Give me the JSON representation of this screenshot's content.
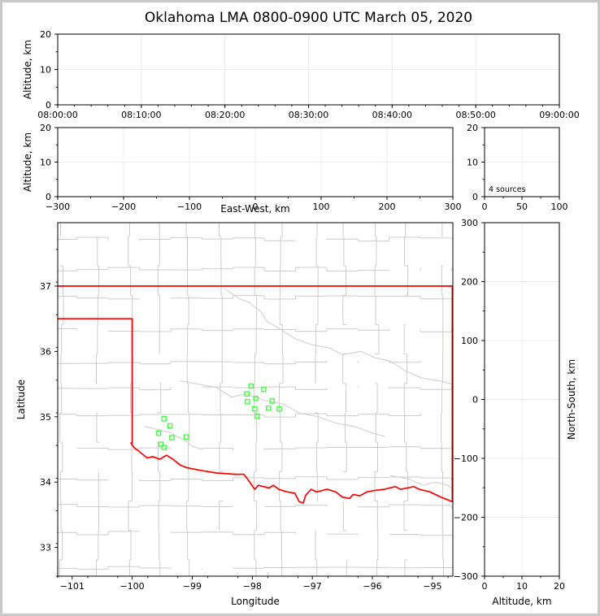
{
  "title": "Oklahoma LMA 0800-0900 UTC March 05, 2020",
  "colors": {
    "background": "#ffffff",
    "page_border": "#c8c8c8",
    "spine": "#000000",
    "gridline": "#ececec",
    "county_line": "#cccccc",
    "state_border": "#ff0000",
    "red_river": "#ff0000",
    "station_marker": "#44ff44",
    "text": "#000000"
  },
  "annotations": {
    "source_count": "4 sources"
  },
  "chart_data": [
    {
      "id": "time_height",
      "type": "scatter",
      "xlabel": "",
      "ylabel": "Altitude, km",
      "xlim": [
        0,
        3600
      ],
      "ylim": [
        0,
        20
      ],
      "xticks": {
        "values": [
          0,
          600,
          1200,
          1800,
          2400,
          3000,
          3600
        ],
        "labels": [
          "08:00:00",
          "08:10:00",
          "08:20:00",
          "08:30:00",
          "08:40:00",
          "08:50:00",
          "09:00:00"
        ],
        "minor_step": 120
      },
      "yticks": {
        "values": [
          0,
          10,
          20
        ],
        "labels": [
          "0",
          "10",
          "20"
        ],
        "minor_step": 5
      },
      "grid": true,
      "points": []
    },
    {
      "id": "ew_height",
      "type": "scatter",
      "xlabel": "East-West, km",
      "ylabel": "Altitude, km",
      "xlim": [
        -300,
        300
      ],
      "ylim": [
        0,
        20
      ],
      "xticks": {
        "values": [
          -300,
          -200,
          -100,
          0,
          100,
          200,
          300
        ],
        "labels": [
          "−300",
          "−200",
          "−100",
          "0",
          "100",
          "200",
          "300"
        ],
        "minor_step": 50
      },
      "yticks": {
        "values": [
          0,
          10,
          20
        ],
        "labels": [
          "0",
          "10",
          "20"
        ],
        "minor_step": 5
      },
      "grid": true,
      "points": []
    },
    {
      "id": "alt_histogram",
      "type": "line",
      "xlabel": "",
      "ylabel": "",
      "annotation": "4 sources",
      "xlim": [
        0,
        100
      ],
      "ylim": [
        0,
        20
      ],
      "xticks": {
        "values": [
          0,
          50,
          100
        ],
        "labels": [
          "0",
          "50",
          "100"
        ],
        "minor_step": 25
      },
      "yticks": {
        "values": [
          0,
          10,
          20
        ],
        "labels": [
          "0",
          "10",
          "20"
        ],
        "minor_step": 5
      },
      "grid": true,
      "points": []
    },
    {
      "id": "map",
      "type": "map+scatter",
      "xlabel": "Longitude",
      "ylabel": "Latitude",
      "xlim": [
        -101.24,
        -94.66
      ],
      "ylim": [
        32.56,
        37.97
      ],
      "xticks": {
        "values": [
          -101,
          -100,
          -99,
          -98,
          -97,
          -96,
          -95
        ],
        "labels": [
          "−101",
          "−100",
          "−99",
          "−98",
          "−97",
          "−96",
          "−95"
        ],
        "minor_step": 0.5
      },
      "yticks": {
        "values": [
          33,
          34,
          35,
          36,
          37
        ],
        "labels": [
          "33",
          "34",
          "35",
          "36",
          "37"
        ],
        "minor_step": 0.5
      },
      "grid": false,
      "county_grid": {
        "lon_step": 0.52,
        "lat_step": 0.45
      },
      "state_border_segments": [
        {
          "name": "kansas-border",
          "points": [
            [
              -101.24,
              37.0
            ],
            [
              -94.66,
              37.0
            ]
          ]
        },
        {
          "name": "panhandle-border",
          "points": [
            [
              -101.24,
              36.5
            ],
            [
              -100.0,
              36.5
            ]
          ]
        },
        {
          "name": "meridian-100-border",
          "points": [
            [
              -100.0,
              36.5
            ],
            [
              -100.0,
              34.6
            ]
          ]
        },
        {
          "name": "east-border",
          "points": [
            [
              -94.67,
              37.0
            ],
            [
              -94.67,
              33.72
            ]
          ]
        }
      ],
      "red_river": [
        [
          -100.02,
          34.6
        ],
        [
          -99.97,
          34.53
        ],
        [
          -99.86,
          34.45
        ],
        [
          -99.75,
          34.37
        ],
        [
          -99.66,
          34.39
        ],
        [
          -99.54,
          34.35
        ],
        [
          -99.43,
          34.41
        ],
        [
          -99.32,
          34.35
        ],
        [
          -99.2,
          34.26
        ],
        [
          -99.09,
          34.22
        ],
        [
          -98.87,
          34.18
        ],
        [
          -98.6,
          34.14
        ],
        [
          -98.28,
          34.12
        ],
        [
          -98.14,
          34.12
        ],
        [
          -98.05,
          34.01
        ],
        [
          -97.96,
          33.89
        ],
        [
          -97.9,
          33.95
        ],
        [
          -97.72,
          33.91
        ],
        [
          -97.65,
          33.95
        ],
        [
          -97.56,
          33.89
        ],
        [
          -97.42,
          33.85
        ],
        [
          -97.29,
          33.83
        ],
        [
          -97.22,
          33.7
        ],
        [
          -97.15,
          33.68
        ],
        [
          -97.11,
          33.8
        ],
        [
          -97.02,
          33.89
        ],
        [
          -96.93,
          33.85
        ],
        [
          -96.75,
          33.89
        ],
        [
          -96.61,
          33.85
        ],
        [
          -96.5,
          33.77
        ],
        [
          -96.38,
          33.75
        ],
        [
          -96.32,
          33.81
        ],
        [
          -96.21,
          33.79
        ],
        [
          -96.09,
          33.85
        ],
        [
          -95.98,
          33.87
        ],
        [
          -95.8,
          33.89
        ],
        [
          -95.62,
          33.93
        ],
        [
          -95.53,
          33.89
        ],
        [
          -95.31,
          33.93
        ],
        [
          -95.22,
          33.89
        ],
        [
          -95.04,
          33.85
        ],
        [
          -94.86,
          33.77
        ],
        [
          -94.67,
          33.7
        ]
      ],
      "gray_rivers": [
        [
          [
            -98.45,
            36.95
          ],
          [
            -98.2,
            36.8
          ],
          [
            -98.05,
            36.75
          ],
          [
            -97.85,
            36.6
          ],
          [
            -97.75,
            36.45
          ],
          [
            -97.6,
            36.38
          ],
          [
            -97.3,
            36.2
          ],
          [
            -97.0,
            36.1
          ],
          [
            -96.7,
            36.05
          ],
          [
            -96.5,
            35.95
          ],
          [
            -96.2,
            36.0
          ],
          [
            -95.95,
            35.9
          ],
          [
            -95.7,
            35.85
          ],
          [
            -95.45,
            35.7
          ],
          [
            -95.2,
            35.6
          ],
          [
            -94.9,
            35.55
          ],
          [
            -94.66,
            35.5
          ]
        ],
        [
          [
            -99.2,
            35.55
          ],
          [
            -98.9,
            35.5
          ],
          [
            -98.6,
            35.45
          ],
          [
            -98.35,
            35.3
          ],
          [
            -98.1,
            35.35
          ],
          [
            -97.8,
            35.25
          ],
          [
            -97.5,
            35.2
          ],
          [
            -97.2,
            35.05
          ],
          [
            -96.9,
            35.0
          ],
          [
            -96.6,
            34.9
          ],
          [
            -96.3,
            34.85
          ],
          [
            -96.0,
            34.75
          ],
          [
            -95.8,
            34.7
          ]
        ],
        [
          [
            -99.8,
            34.85
          ],
          [
            -99.55,
            34.8
          ],
          [
            -99.35,
            34.75
          ],
          [
            -99.15,
            34.65
          ],
          [
            -99.0,
            34.55
          ],
          [
            -98.85,
            34.5
          ]
        ],
        [
          [
            -95.7,
            34.1
          ],
          [
            -95.4,
            34.05
          ],
          [
            -95.15,
            33.95
          ],
          [
            -94.95,
            34.0
          ],
          [
            -94.75,
            33.95
          ],
          [
            -94.66,
            33.9
          ]
        ]
      ],
      "stations": [
        [
          -99.47,
          34.97
        ],
        [
          -99.37,
          34.86
        ],
        [
          -99.56,
          34.75
        ],
        [
          -99.34,
          34.68
        ],
        [
          -99.1,
          34.69
        ],
        [
          -99.52,
          34.58
        ],
        [
          -99.47,
          34.53
        ],
        [
          -98.02,
          35.47
        ],
        [
          -97.81,
          35.42
        ],
        [
          -98.09,
          35.35
        ],
        [
          -97.94,
          35.28
        ],
        [
          -98.08,
          35.23
        ],
        [
          -97.67,
          35.24
        ],
        [
          -97.73,
          35.13
        ],
        [
          -97.96,
          35.12
        ],
        [
          -97.55,
          35.12
        ],
        [
          -97.92,
          35.01
        ]
      ]
    },
    {
      "id": "ns_height",
      "type": "scatter",
      "xlabel": "Altitude, km",
      "ylabel": "North-South, km",
      "xlim": [
        0,
        20
      ],
      "ylim": [
        -300,
        300
      ],
      "xticks": {
        "values": [
          0,
          10,
          20
        ],
        "labels": [
          "0",
          "10",
          "20"
        ],
        "minor_step": 5
      },
      "yticks": {
        "values": [
          300,
          200,
          100,
          0,
          -100,
          -200,
          -300
        ],
        "labels": [
          "300",
          "200",
          "100",
          "0",
          "−100",
          "−200",
          "−300"
        ],
        "minor_step": 50
      },
      "grid": true,
      "points": []
    }
  ]
}
